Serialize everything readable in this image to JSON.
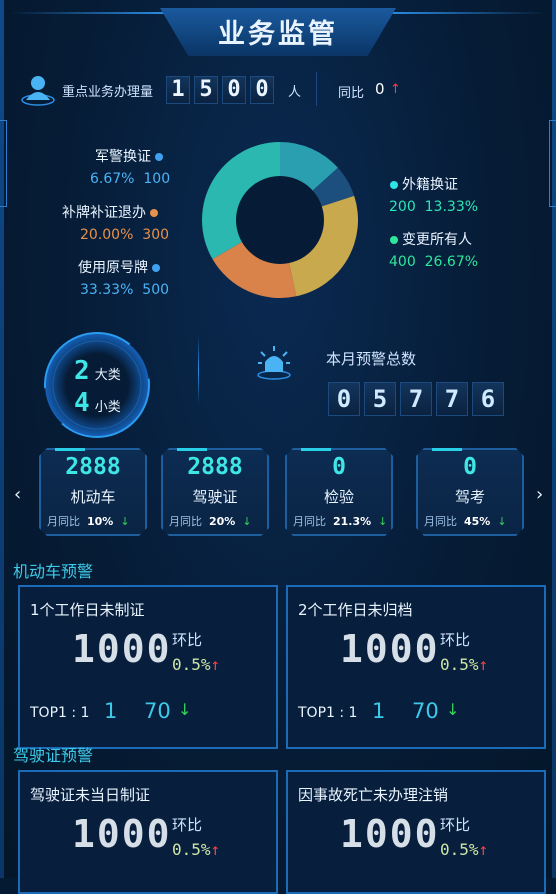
{
  "title": "业务监管",
  "header": {
    "label": "重点业务办理量",
    "digits": [
      "1",
      "5",
      "0",
      "0"
    ],
    "unit": "人",
    "yoy_label": "同比",
    "yoy_value": "0",
    "yoy_arrow": "↑"
  },
  "chart_data": {
    "type": "pie",
    "series": [
      {
        "name": "军警换证",
        "percent": "6.67%",
        "value": "100",
        "color": "#2ecfc0"
      },
      {
        "name": "补牌补证退办",
        "percent": "20.00%",
        "value": "300",
        "color": "#e8914a"
      },
      {
        "name": "使用原号牌",
        "percent": "33.33%",
        "value": "500",
        "color": "#3fa2f0"
      },
      {
        "name": "外籍换证",
        "percent": "13.33%",
        "value": "200",
        "color": "#2ce6e6"
      },
      {
        "name": "变更所有人",
        "percent": "26.67%",
        "value": "400",
        "color": "#2ee69a"
      }
    ]
  },
  "ring": {
    "big_num": "2",
    "big_label": "大类",
    "small_num": "4",
    "small_label": "小类"
  },
  "alarm": {
    "label": "本月预警总数",
    "digits": [
      "0",
      "5",
      "7",
      "7",
      "6"
    ]
  },
  "nav": {
    "left": "‹",
    "right": "›"
  },
  "cards": [
    {
      "value": "2888",
      "label": "机动车",
      "foot_label": "月同比",
      "foot_value": "10%",
      "arrow": "↓"
    },
    {
      "value": "2888",
      "label": "驾驶证",
      "foot_label": "月同比",
      "foot_value": "20%",
      "arrow": "↓"
    },
    {
      "value": "0",
      "label": "检验",
      "foot_label": "月同比",
      "foot_value": "21.3%",
      "arrow": "↓"
    },
    {
      "value": "0",
      "label": "驾考",
      "foot_label": "月同比",
      "foot_value": "45%",
      "arrow": "↓"
    }
  ],
  "sections": [
    {
      "title": "机动车预警",
      "panels": [
        {
          "title": "1个工作日未制证",
          "value": "1000",
          "hb_label": "环比",
          "pct": "0.5%",
          "up": "↑",
          "top_label": "TOP1 : 1",
          "top_v1": "1",
          "top_v2": "70",
          "down": "↓"
        },
        {
          "title": "2个工作日未归档",
          "value": "1000",
          "hb_label": "环比",
          "pct": "0.5%",
          "up": "↑",
          "top_label": "TOP1 : 1",
          "top_v1": "1",
          "top_v2": "70",
          "down": "↓"
        }
      ]
    },
    {
      "title": "驾驶证预警",
      "panels": [
        {
          "title": "驾驶证未当日制证",
          "value": "1000",
          "hb_label": "环比",
          "pct": "0.5%",
          "up": "↑"
        },
        {
          "title": "因事故死亡未办理注销",
          "value": "1000",
          "hb_label": "环比",
          "pct": "0.5%",
          "up": "↑"
        }
      ]
    }
  ]
}
